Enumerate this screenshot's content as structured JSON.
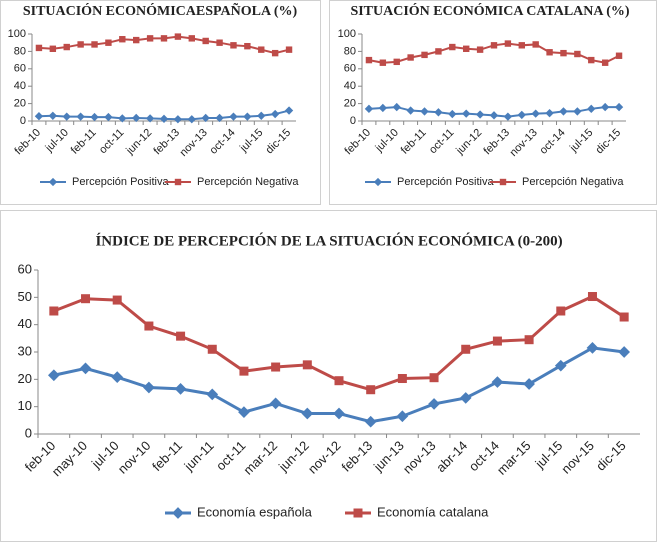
{
  "chart_data": [
    {
      "type": "line",
      "title": "SITUACIÓN ECONÓMICAESPAÑOLA (%)",
      "categories": [
        "feb-10",
        null,
        "jul-10",
        null,
        "feb-11",
        null,
        "oct-11",
        null,
        "jun-12",
        null,
        "feb-13",
        null,
        "nov-13",
        null,
        "oct-14",
        null,
        "jul-15",
        null,
        "dic-15"
      ],
      "series": [
        {
          "name": "Percepción Positiva",
          "color": "#4a7ebb",
          "marker": "diamond",
          "values": [
            5.5,
            6,
            5,
            5,
            4.5,
            4.5,
            3,
            3.5,
            3,
            2.5,
            2,
            2,
            3.5,
            3.5,
            5,
            5,
            6,
            8,
            12
          ]
        },
        {
          "name": "Percepción Negativa",
          "color": "#be4b48",
          "marker": "square",
          "values": [
            84,
            83,
            85,
            88,
            88,
            90,
            94,
            93,
            95,
            95,
            97,
            95,
            92,
            90,
            87,
            86,
            82,
            78,
            82
          ]
        }
      ],
      "ylim": [
        0,
        100
      ],
      "yticks": [
        0,
        20,
        40,
        60,
        80,
        100
      ],
      "legend": "bottom"
    },
    {
      "type": "line",
      "title": "SITUACIÓN ECONÓMICA CATALANA (%)",
      "categories": [
        "feb-10",
        null,
        "jul-10",
        null,
        "feb-11",
        null,
        "oct-11",
        null,
        "jun-12",
        null,
        "feb-13",
        null,
        "nov-13",
        null,
        "oct-14",
        null,
        "jul-15",
        null,
        "dic-15"
      ],
      "series": [
        {
          "name": "Percepción Positiva",
          "color": "#4a7ebb",
          "marker": "diamond",
          "values": [
            14,
            15,
            16,
            12,
            11,
            10,
            8,
            8.5,
            7.5,
            6.5,
            5,
            7,
            8.5,
            9,
            11,
            11,
            14,
            16,
            16
          ]
        },
        {
          "name": "Percepción Negativa",
          "color": "#be4b48",
          "marker": "square",
          "values": [
            70,
            67,
            68,
            73,
            76,
            80,
            85,
            83,
            82,
            87,
            89,
            87,
            88,
            79,
            78,
            77,
            70,
            67,
            75
          ]
        }
      ],
      "ylim": [
        0,
        100
      ],
      "yticks": [
        0,
        20,
        40,
        60,
        80,
        100
      ],
      "legend": "bottom"
    },
    {
      "type": "line",
      "title": "ÍNDICE DE PERCEPCIÓN DE LA SITUACIÓN ECONÓMICA (0-200)",
      "categories": [
        "feb-10",
        "may-10",
        "jul-10",
        "nov-10",
        "feb-11",
        "jun-11",
        "oct-11",
        "mar-12",
        "jun-12",
        "nov-12",
        "feb-13",
        "jun-13",
        "nov-13",
        "abr-14",
        "oct-14",
        "mar-15",
        "jul-15",
        "nov-15",
        "dic-15"
      ],
      "series": [
        {
          "name": "Economía española",
          "color": "#4a7ebb",
          "marker": "diamond",
          "values": [
            21.5,
            24,
            20.8,
            17,
            16.5,
            14.5,
            8,
            11.2,
            7.5,
            7.5,
            4.5,
            6.5,
            11,
            13.2,
            19,
            18.3,
            25,
            31.5,
            30
          ]
        },
        {
          "name": "Economía catalana",
          "color": "#be4b48",
          "marker": "square",
          "values": [
            45,
            49.5,
            49,
            39.5,
            35.8,
            31,
            23,
            24.5,
            25.3,
            19.5,
            16.2,
            20.3,
            20.6,
            31,
            34,
            34.5,
            45,
            50.3,
            42.8
          ]
        }
      ],
      "ylim": [
        0,
        60
      ],
      "yticks": [
        0,
        10,
        20,
        30,
        40,
        50,
        60
      ],
      "legend": "bottom"
    }
  ]
}
